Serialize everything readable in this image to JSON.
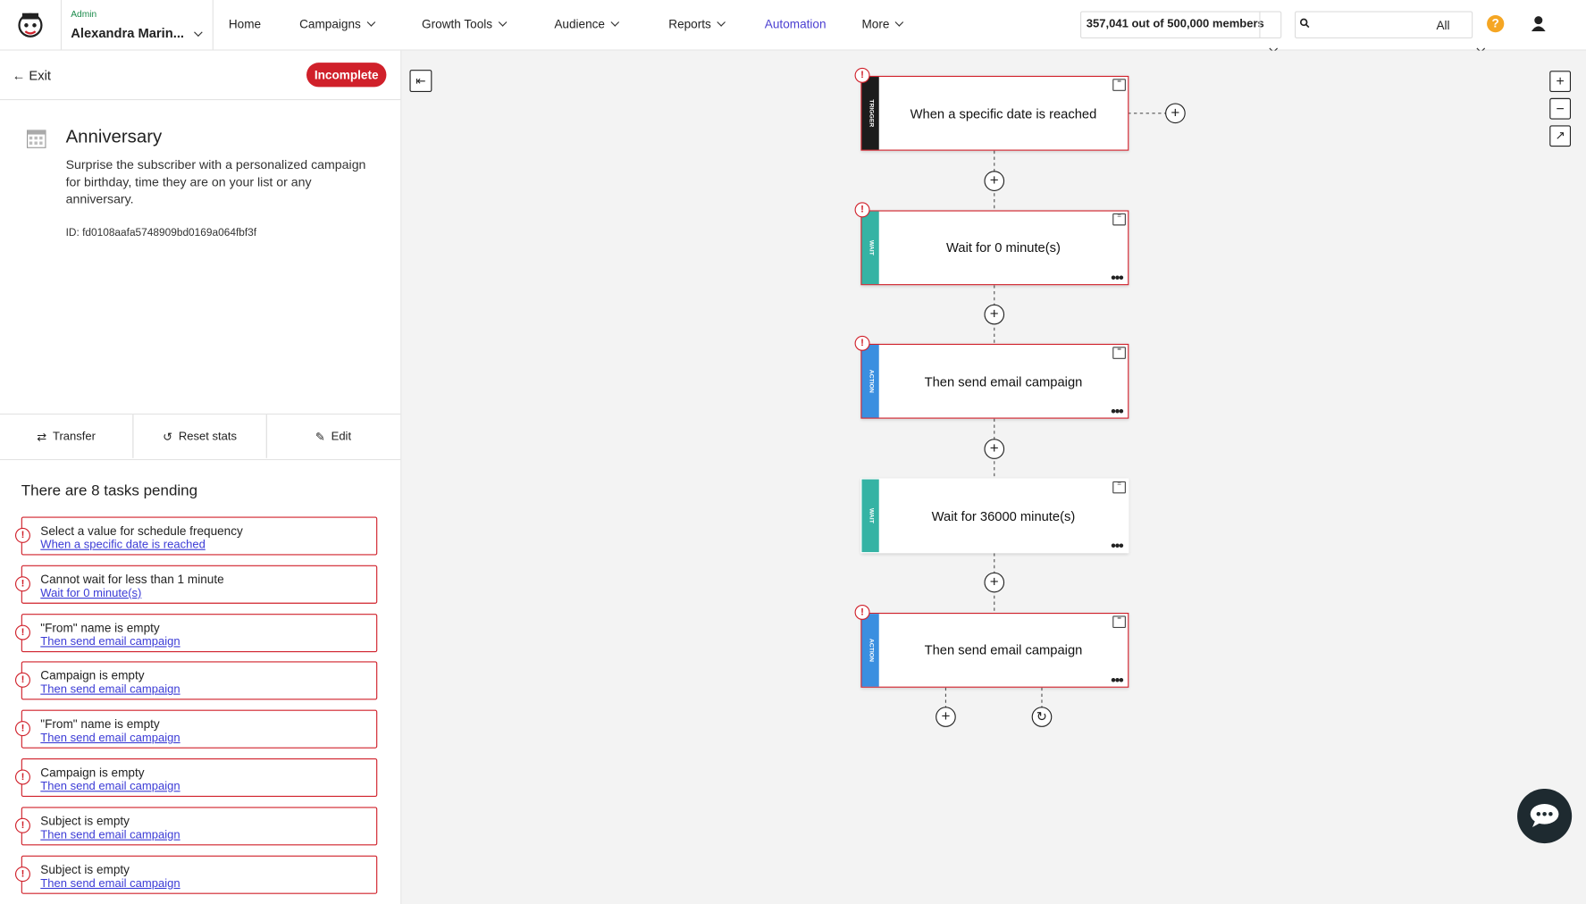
{
  "header": {
    "admin_label": "Admin",
    "account_name": "Alexandra Marin...",
    "nav": [
      "Home",
      "Campaigns",
      "Growth Tools",
      "Audience",
      "Reports",
      "Automation",
      "More"
    ],
    "members": "357,041 out of 500,000 members",
    "search_scope": "All"
  },
  "sidebar": {
    "exit": "Exit",
    "status": "Incomplete",
    "title": "Anniversary",
    "description": "Surprise the subscriber with a personalized campaign for birthday, time they are on your list or any anniversary.",
    "id": "ID: fd0108aafa5748909bd0169a064fbf3f",
    "actions": [
      "Transfer",
      "Reset stats",
      "Edit"
    ],
    "tasks_heading": "There are 8 tasks pending",
    "tasks": [
      {
        "message": "Select a value for schedule frequency",
        "link": "When a specific date is reached"
      },
      {
        "message": "Cannot wait for less than 1 minute",
        "link": "Wait for 0 minute(s)"
      },
      {
        "message": "\"From\" name is empty",
        "link": "Then send email campaign"
      },
      {
        "message": "Campaign is empty",
        "link": "Then send email campaign"
      },
      {
        "message": "\"From\" name is empty",
        "link": "Then send email campaign"
      },
      {
        "message": "Campaign is empty",
        "link": "Then send email campaign"
      },
      {
        "message": "Subject is empty",
        "link": "Then send email campaign"
      },
      {
        "message": "Subject is empty",
        "link": "Then send email campaign"
      }
    ]
  },
  "workflow": {
    "nodes": [
      {
        "tag": "TRIGGER",
        "label": "When a specific date is reached"
      },
      {
        "tag": "WAIT",
        "label": "Wait for 0 minute(s)"
      },
      {
        "tag": "ACTION",
        "label": "Then send email campaign"
      },
      {
        "tag": "WAIT",
        "label": "Wait for 36000 minute(s)"
      },
      {
        "tag": "ACTION",
        "label": "Then send email campaign"
      }
    ]
  }
}
